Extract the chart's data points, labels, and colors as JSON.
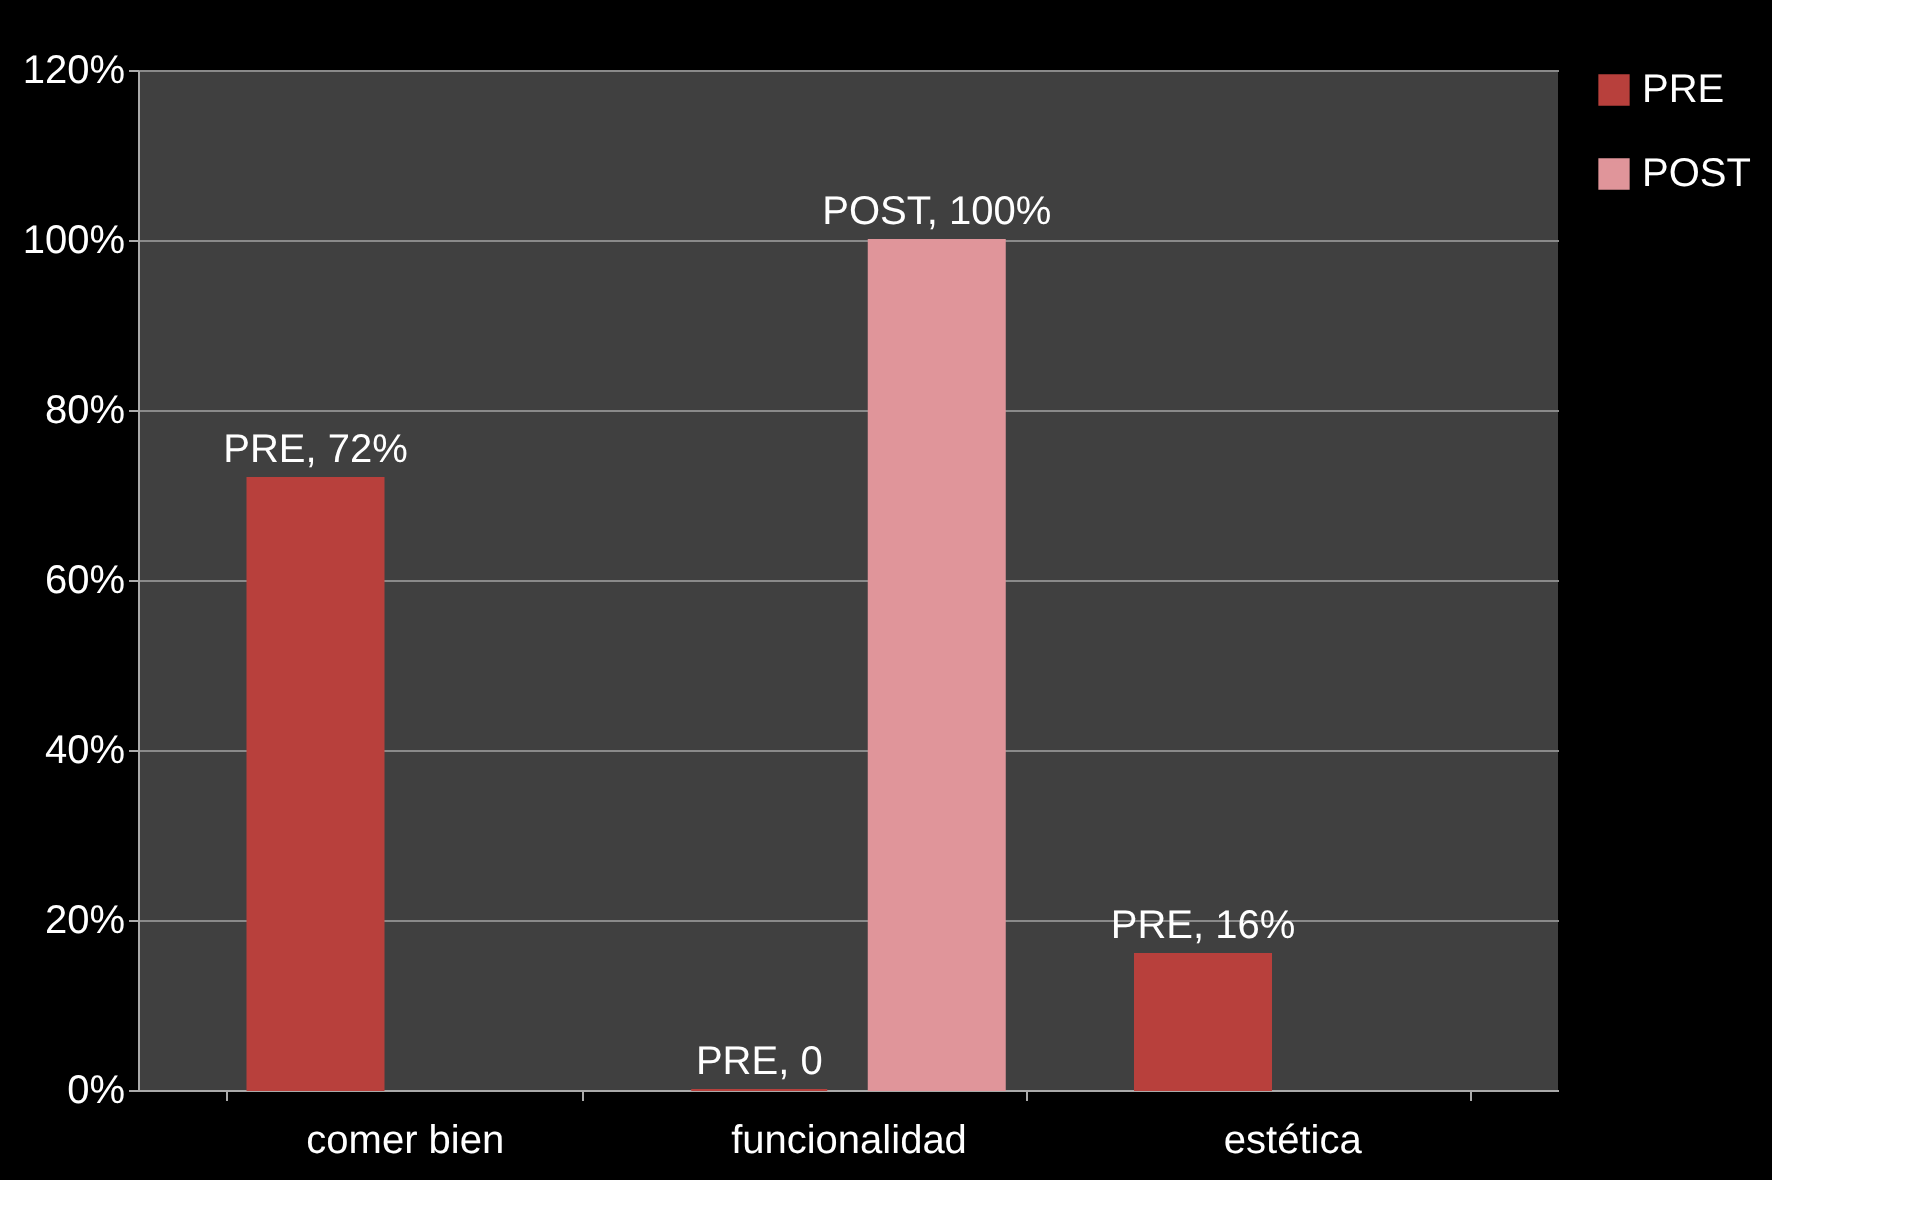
{
  "chart_data": {
    "type": "bar",
    "categories": [
      "comer bien",
      "funcionalidad",
      "estética"
    ],
    "series": [
      {
        "name": "PRE",
        "color": "#b8403c",
        "values": [
          72,
          0,
          16
        ],
        "value_labels": [
          "PRE, 72%",
          "PRE, 0",
          "PRE, 16%"
        ]
      },
      {
        "name": "POST",
        "color": "#e0959a",
        "values": [
          null,
          100,
          null
        ],
        "value_labels": [
          null,
          "POST, 100%",
          null
        ]
      }
    ],
    "ylim": [
      0,
      120
    ],
    "yticks": [
      {
        "value": 0,
        "label": "0%"
      },
      {
        "value": 20,
        "label": "20%"
      },
      {
        "value": 40,
        "label": "40%"
      },
      {
        "value": 60,
        "label": "60%"
      },
      {
        "value": 80,
        "label": "80%"
      },
      {
        "value": 100,
        "label": "100%"
      },
      {
        "value": 120,
        "label": "120%"
      }
    ],
    "grid": "y",
    "legend": "right"
  }
}
